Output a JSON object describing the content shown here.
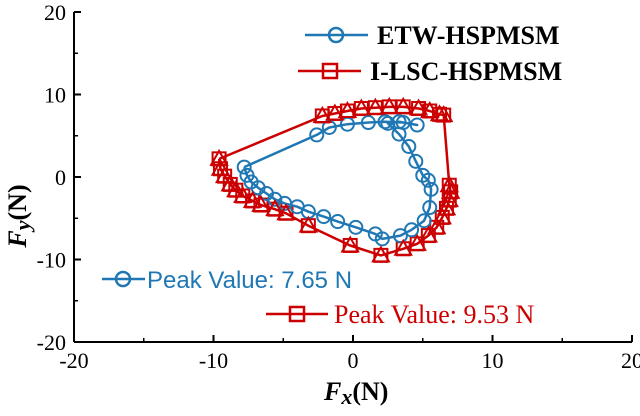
{
  "chart_data": {
    "type": "line",
    "title": "",
    "xlabel": {
      "main": "F",
      "sub": "x",
      "unit": "(N)"
    },
    "ylabel": {
      "main": "F",
      "sub": "y",
      "unit": "(N)"
    },
    "xlim": [
      -20,
      20
    ],
    "ylim": [
      -20,
      20
    ],
    "xticks": [
      -20,
      -10,
      0,
      10,
      20
    ],
    "yticks": [
      -20,
      -10,
      0,
      10,
      20
    ],
    "xtick_labels": [
      "-20",
      "-10",
      "0",
      "10",
      "20"
    ],
    "ytick_labels": [
      "-20",
      "-10",
      "0",
      "10",
      "20"
    ],
    "grid": false,
    "legend_position": "top-right",
    "series": [
      {
        "name": "ETW-HSPMSM",
        "color": "#1f77b4",
        "marker": "circle",
        "x": [
          -7.8,
          -7.6,
          -7.3,
          -6.8,
          -6.2,
          -5.6,
          -4.9,
          -4.0,
          -3.2,
          -2.1,
          -1.1,
          0.2,
          1.6,
          2.1,
          3.4,
          4.2,
          5.1,
          5.5,
          5.6,
          5.4,
          5.0,
          4.5,
          4.0,
          3.3,
          2.5,
          3.3,
          4.6,
          3.6,
          2.3,
          1.1,
          -0.4,
          -1.7,
          -2.6,
          -7.8
        ],
        "y": [
          1.2,
          0.2,
          -0.6,
          -1.3,
          -2.0,
          -2.7,
          -3.2,
          -3.6,
          -4.2,
          -4.8,
          -5.4,
          -6.1,
          -6.9,
          -7.5,
          -7.1,
          -6.4,
          -5.3,
          -3.7,
          -1.5,
          -0.4,
          0.2,
          1.9,
          3.7,
          5.2,
          6.5,
          6.7,
          6.3,
          6.6,
          6.7,
          6.6,
          6.4,
          6.0,
          5.1,
          1.2
        ]
      },
      {
        "name": "I-LSC-HSPMSM",
        "color": "#cc0000",
        "marker": "square",
        "x": [
          -9.6,
          -9.5,
          -9.2,
          -8.8,
          -8.4,
          -7.9,
          -7.2,
          -6.6,
          -5.6,
          -4.8,
          -3.2,
          -0.2,
          2.0,
          3.6,
          4.6,
          5.4,
          6.0,
          6.4,
          6.7,
          6.9,
          7.0,
          6.9,
          6.5,
          6.2,
          5.5,
          4.7,
          3.6,
          2.6,
          1.6,
          0.6,
          -0.4,
          -1.3,
          -2.2,
          -9.6
        ],
        "y": [
          2.2,
          1.0,
          0.1,
          -0.9,
          -1.6,
          -2.3,
          -2.9,
          -3.4,
          -3.9,
          -4.4,
          -5.9,
          -8.3,
          -9.5,
          -8.7,
          -8.1,
          -7.1,
          -6.1,
          -4.9,
          -3.8,
          -2.8,
          -1.8,
          -1.0,
          7.5,
          7.6,
          8.0,
          8.3,
          8.5,
          8.5,
          8.4,
          8.3,
          8.0,
          7.7,
          7.4,
          2.2
        ]
      }
    ],
    "annotations": [
      {
        "label": "Peak Value: 7.65 N",
        "series": "ETW-HSPMSM"
      },
      {
        "label": "Peak Value: 9.53 N",
        "series": "I-LSC-HSPMSM"
      }
    ]
  }
}
